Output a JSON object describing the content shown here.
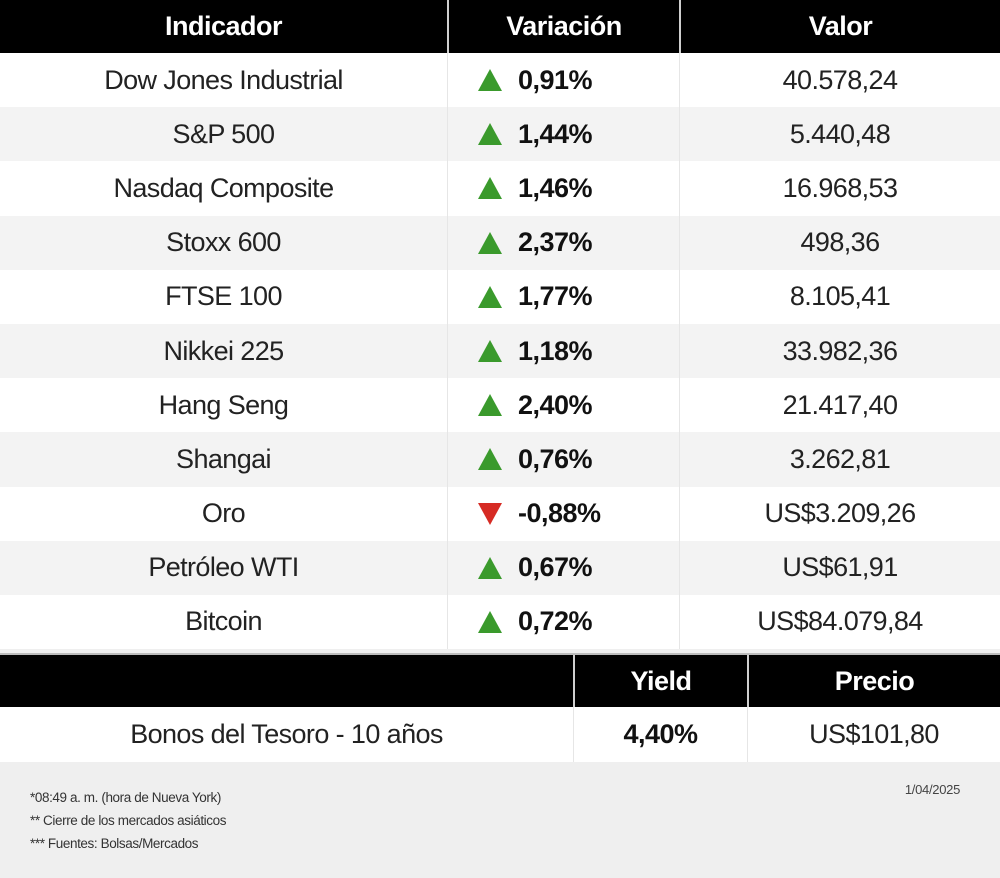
{
  "main_table": {
    "headers": [
      "Indicador",
      "Variación",
      "Valor"
    ],
    "rows": [
      {
        "name": "Dow Jones Industrial",
        "direction": "up",
        "change": "0,91%",
        "value": "40.578,24"
      },
      {
        "name": "S&P 500",
        "direction": "up",
        "change": "1,44%",
        "value": "5.440,48"
      },
      {
        "name": "Nasdaq Composite",
        "direction": "up",
        "change": "1,46%",
        "value": "16.968,53"
      },
      {
        "name": "Stoxx 600",
        "direction": "up",
        "change": "2,37%",
        "value": "498,36"
      },
      {
        "name": "FTSE 100",
        "direction": "up",
        "change": "1,77%",
        "value": "8.105,41"
      },
      {
        "name": "Nikkei 225",
        "direction": "up",
        "change": "1,18%",
        "value": "33.982,36"
      },
      {
        "name": "Hang Seng",
        "direction": "up",
        "change": "2,40%",
        "value": "21.417,40"
      },
      {
        "name": "Shangai",
        "direction": "up",
        "change": "0,76%",
        "value": "3.262,81"
      },
      {
        "name": "Oro",
        "direction": "down",
        "change": "-0,88%",
        "value": "US$3.209,26"
      },
      {
        "name": "Petróleo WTI",
        "direction": "up",
        "change": "0,67%",
        "value": "US$61,91"
      },
      {
        "name": "Bitcoin",
        "direction": "up",
        "change": "0,72%",
        "value": "US$84.079,84"
      }
    ]
  },
  "bond_table": {
    "headers": [
      "",
      "Yield",
      "Precio"
    ],
    "row": {
      "name": "Bonos del Tesoro - 10 años",
      "yield": "4,40%",
      "price": "US$101,80"
    }
  },
  "footer": {
    "notes": [
      "*08:49 a. m. (hora de Nueva York)",
      " ** Cierre de los mercados asiáticos",
      "*** Fuentes:  Bolsas/Mercados"
    ],
    "date": "1/04/2025"
  },
  "colors": {
    "up": "#3a9a2c",
    "down": "#d62b24",
    "header_bg": "#000000",
    "row_alt_bg": "#f3f3f3",
    "footer_bg": "#efefef"
  },
  "icons": {
    "up": "triangle-up-icon",
    "down": "triangle-down-icon"
  }
}
